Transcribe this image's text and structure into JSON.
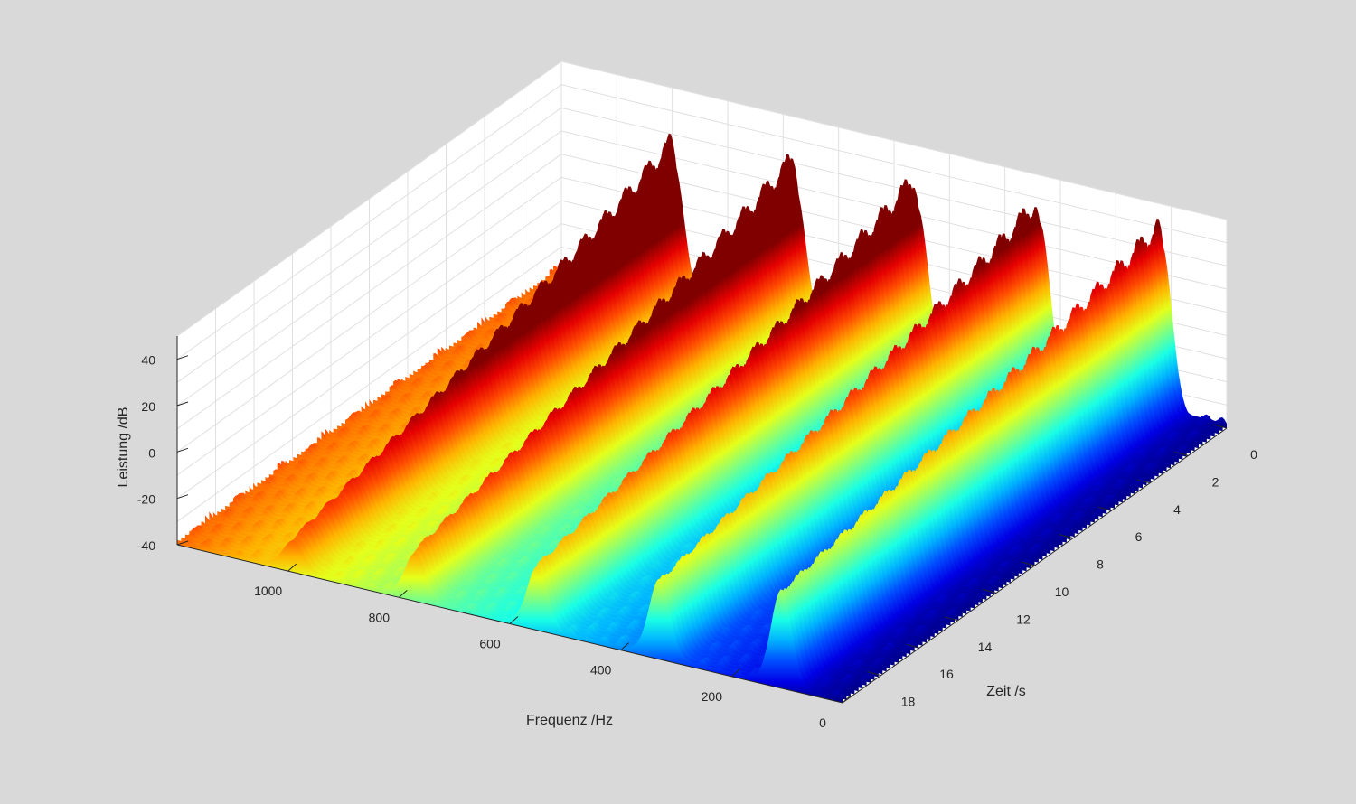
{
  "chart_data": {
    "type": "surface",
    "title": "",
    "xlabel": "Frequenz /Hz",
    "ylabel": "Zeit /s",
    "zlabel": "Leistung /dB",
    "xlim": [
      0,
      1200
    ],
    "ylim": [
      0,
      20
    ],
    "zlim": [
      -40,
      50
    ],
    "x_ticks": [
      {
        "value": 0,
        "label": "0"
      },
      {
        "value": 200,
        "label": "200"
      },
      {
        "value": 400,
        "label": "400"
      },
      {
        "value": 600,
        "label": "600"
      },
      {
        "value": 800,
        "label": "800"
      },
      {
        "value": 1000,
        "label": "1000"
      }
    ],
    "y_ticks": [
      {
        "value": 0,
        "label": "0"
      },
      {
        "value": 2,
        "label": "2"
      },
      {
        "value": 4,
        "label": "4"
      },
      {
        "value": 6,
        "label": "6"
      },
      {
        "value": 8,
        "label": "8"
      },
      {
        "value": 10,
        "label": "10"
      },
      {
        "value": 12,
        "label": "12"
      },
      {
        "value": 14,
        "label": "14"
      },
      {
        "value": 16,
        "label": "16"
      },
      {
        "value": 18,
        "label": "18"
      }
    ],
    "z_ticks": [
      {
        "value": -40,
        "label": "-40"
      },
      {
        "value": -20,
        "label": "-20"
      },
      {
        "value": 0,
        "label": "0"
      },
      {
        "value": 20,
        "label": "20"
      },
      {
        "value": 40,
        "label": "40"
      }
    ],
    "grid": true,
    "colormap": "jet",
    "harmonic_ridges": [
      {
        "frequency": 110,
        "peak_db": 46,
        "end_db": 2
      },
      {
        "frequency": 330,
        "peak_db": 44,
        "end_db": -6
      },
      {
        "frequency": 550,
        "peak_db": 42,
        "end_db": -12
      },
      {
        "frequency": 770,
        "peak_db": 38,
        "end_db": -18
      },
      {
        "frequency": 990,
        "peak_db": 32,
        "end_db": -26
      }
    ],
    "noise_floor_db": -38
  }
}
